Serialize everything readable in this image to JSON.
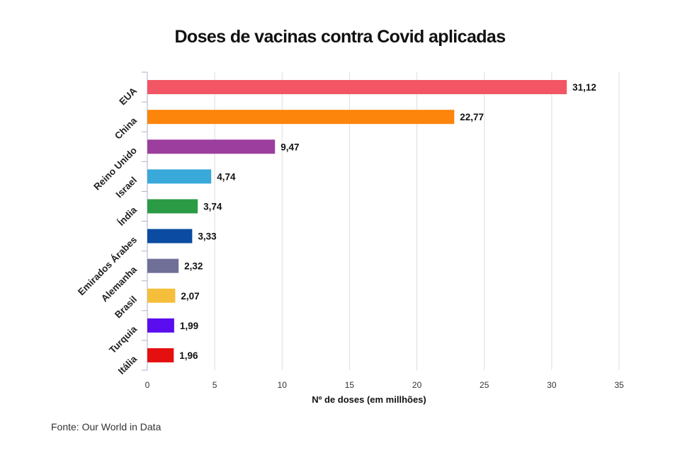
{
  "chart_data": {
    "type": "bar",
    "orientation": "horizontal",
    "title": "Doses de vacinas contra Covid aplicadas",
    "xlabel": "Nº de doses (em millhões)",
    "ylabel": "",
    "categories": [
      "EUA",
      "China",
      "Reino Unido",
      "Israel",
      "Índia",
      "Emirados Árabes",
      "Alemanha",
      "Brasil",
      "Turquia",
      "Itália"
    ],
    "values": [
      31.12,
      22.77,
      9.47,
      4.74,
      3.74,
      3.33,
      2.32,
      2.07,
      1.99,
      1.96
    ],
    "value_labels": [
      "31,12",
      "22,77",
      "9,47",
      "4,74",
      "3,74",
      "3,33",
      "2,32",
      "2,07",
      "1,99",
      "1,96"
    ],
    "colors": [
      "#f25563",
      "#fd850c",
      "#9b3e9d",
      "#38a9d9",
      "#2b9b45",
      "#0b4ba1",
      "#6f6f98",
      "#f5bf3c",
      "#5a0dee",
      "#e50f0f"
    ],
    "xlim": [
      0,
      35
    ],
    "xticks": [
      0,
      5,
      10,
      15,
      20,
      25,
      30,
      35
    ],
    "grid": true,
    "legend": "none"
  },
  "source": "Fonte: Our World in Data"
}
